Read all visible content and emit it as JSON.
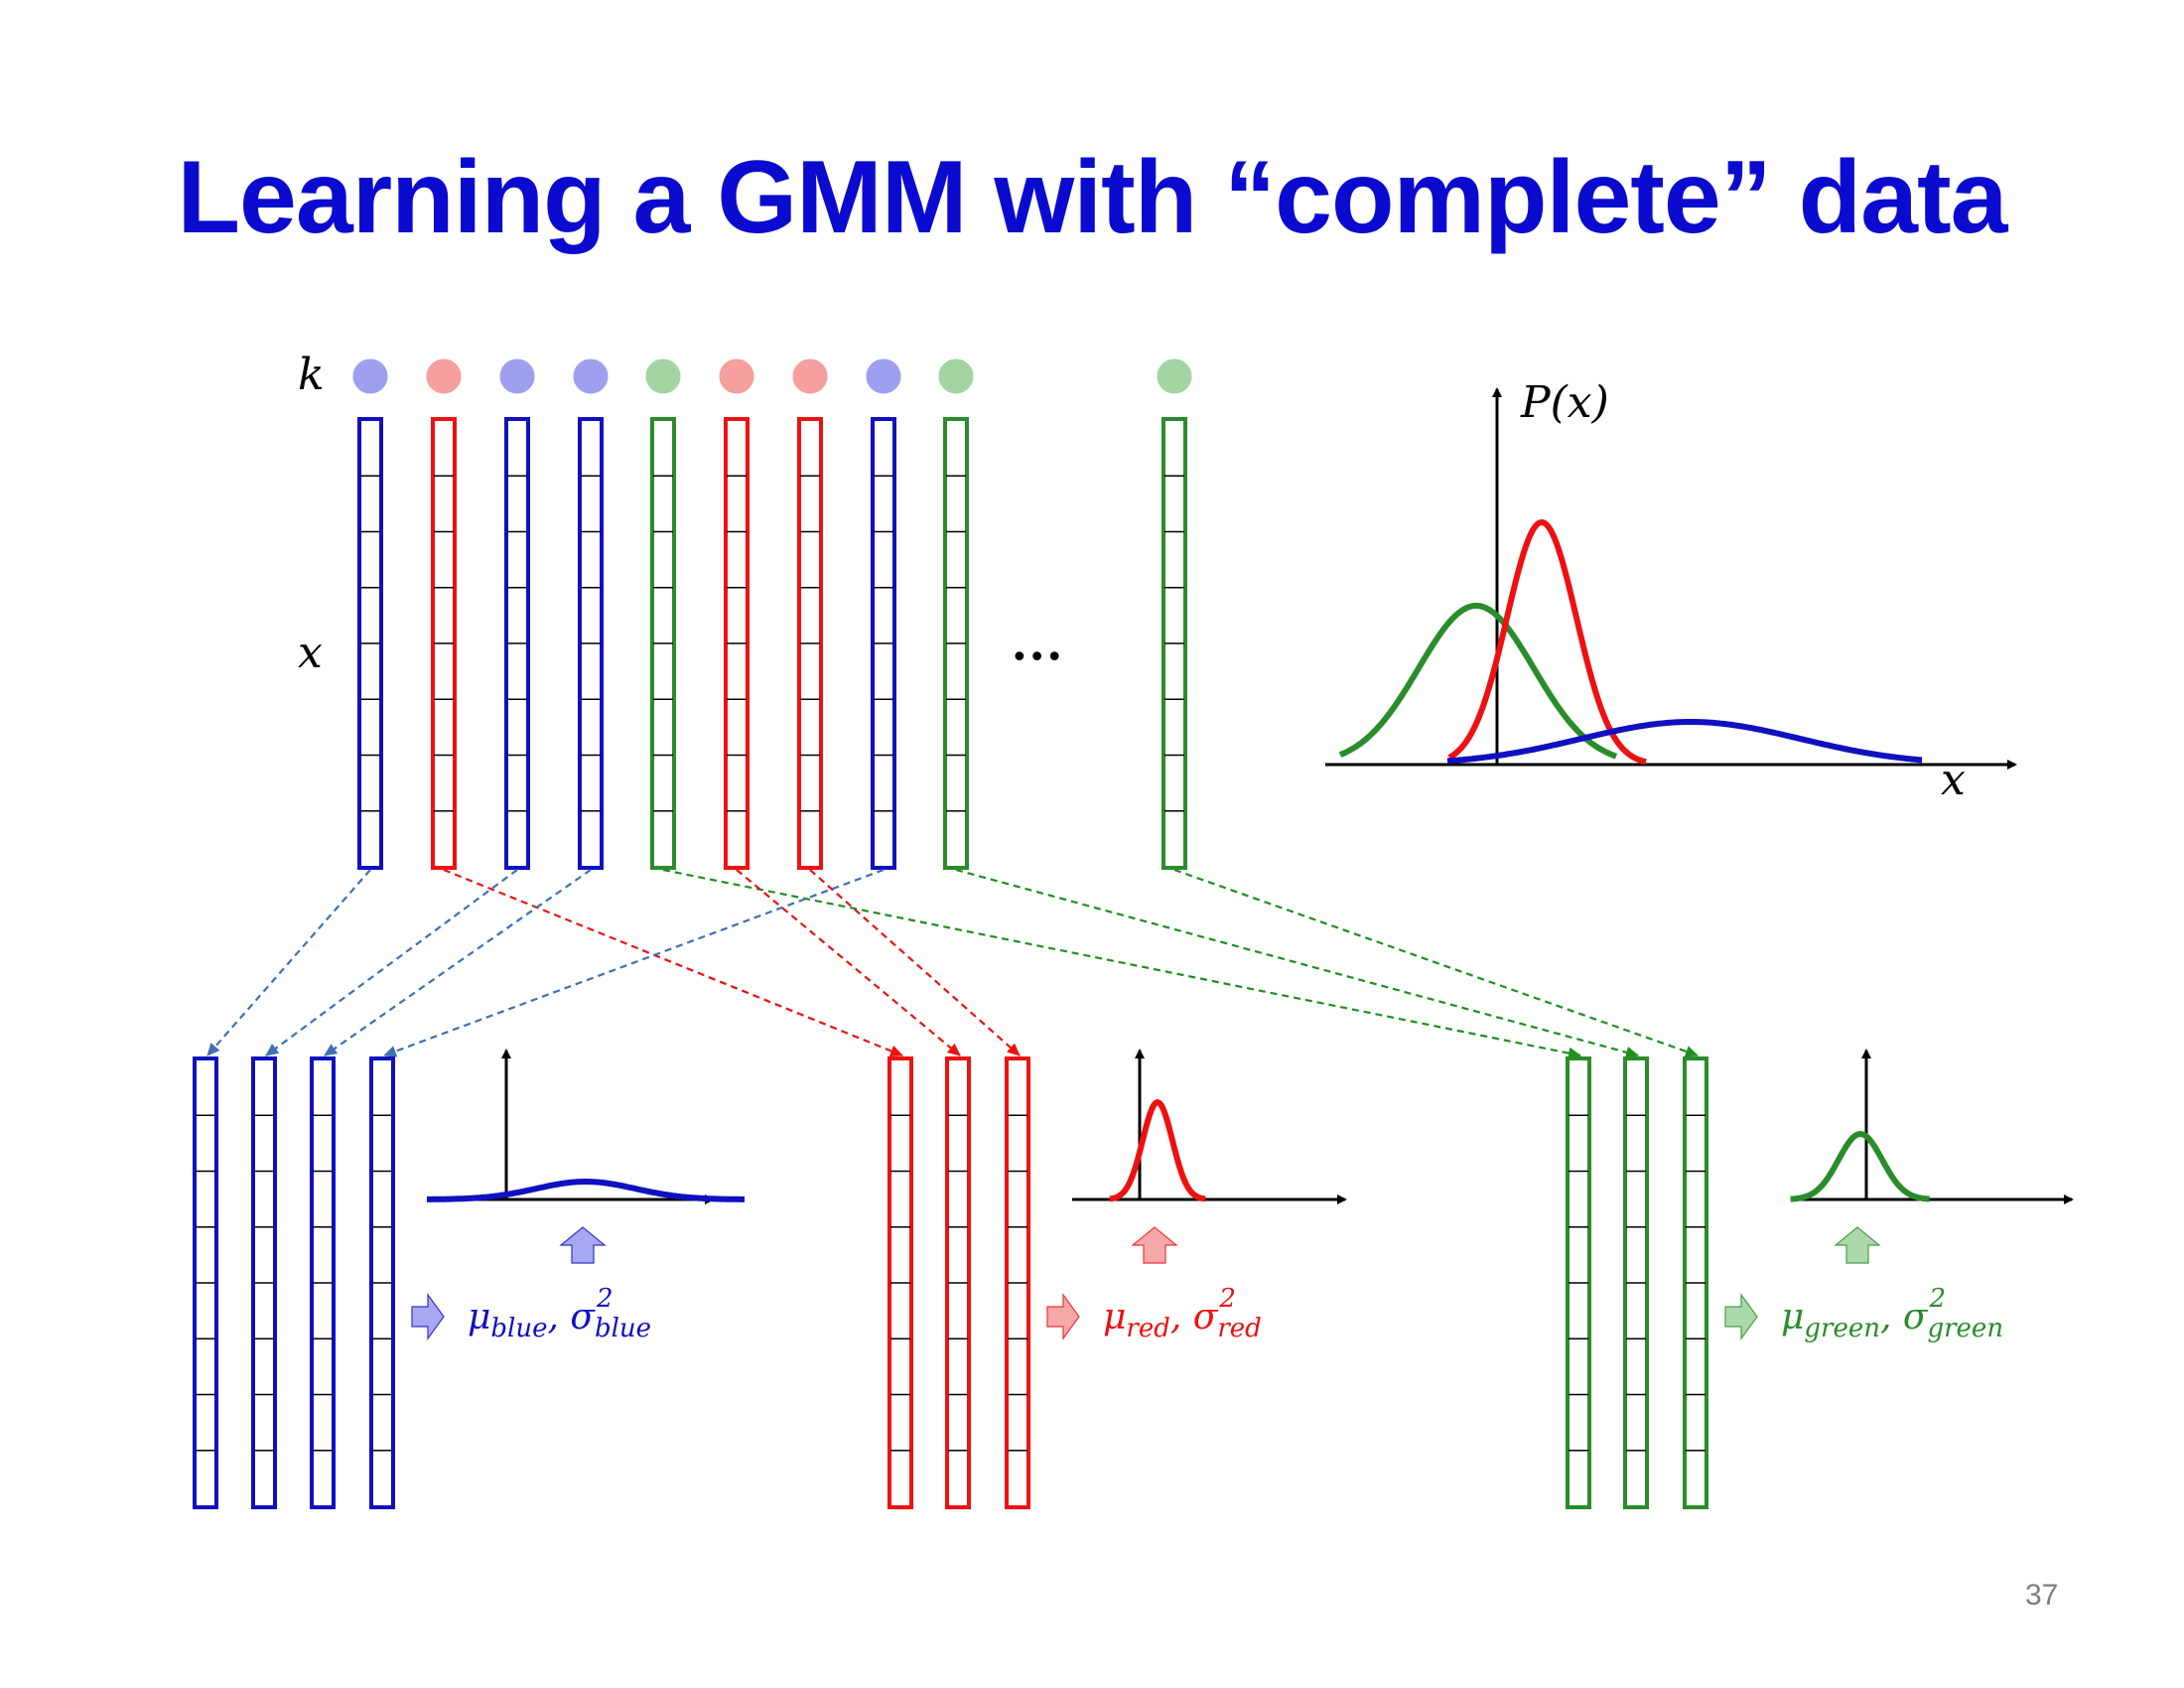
{
  "slide": {
    "title": "Learning a GMM with “complete” data",
    "page_number": "37"
  },
  "colors": {
    "title": "#0b0bd0",
    "blue": "#1010c0",
    "red": "#ee1111",
    "green": "#2a8c2a",
    "blue_dot": "#9a9af0",
    "red_dot": "#f59a9a",
    "green_dot": "#9ed39e",
    "blue_arrow": "#3f6fb5",
    "red_arrow": "#ee1111",
    "green_arrow": "#1f8f1f"
  },
  "labels": {
    "k": "k",
    "x": "x",
    "ellipsis": "•••",
    "px_axis": "P(x)",
    "x_axis": "x"
  },
  "data_columns": [
    "blue",
    "red",
    "blue",
    "blue",
    "green",
    "red",
    "red",
    "blue",
    "green",
    "green"
  ],
  "groups": [
    {
      "color": "blue",
      "mu_sub": "blue",
      "sigma_sup": "2",
      "sigma_sub": "blue",
      "columns": 4
    },
    {
      "color": "red",
      "mu_sub": "red",
      "sigma_sup": "2",
      "sigma_sub": "red",
      "columns": 3
    },
    {
      "color": "green",
      "mu_sub": "green",
      "sigma_sup": "2",
      "sigma_sub": "green",
      "columns": 3
    }
  ]
}
